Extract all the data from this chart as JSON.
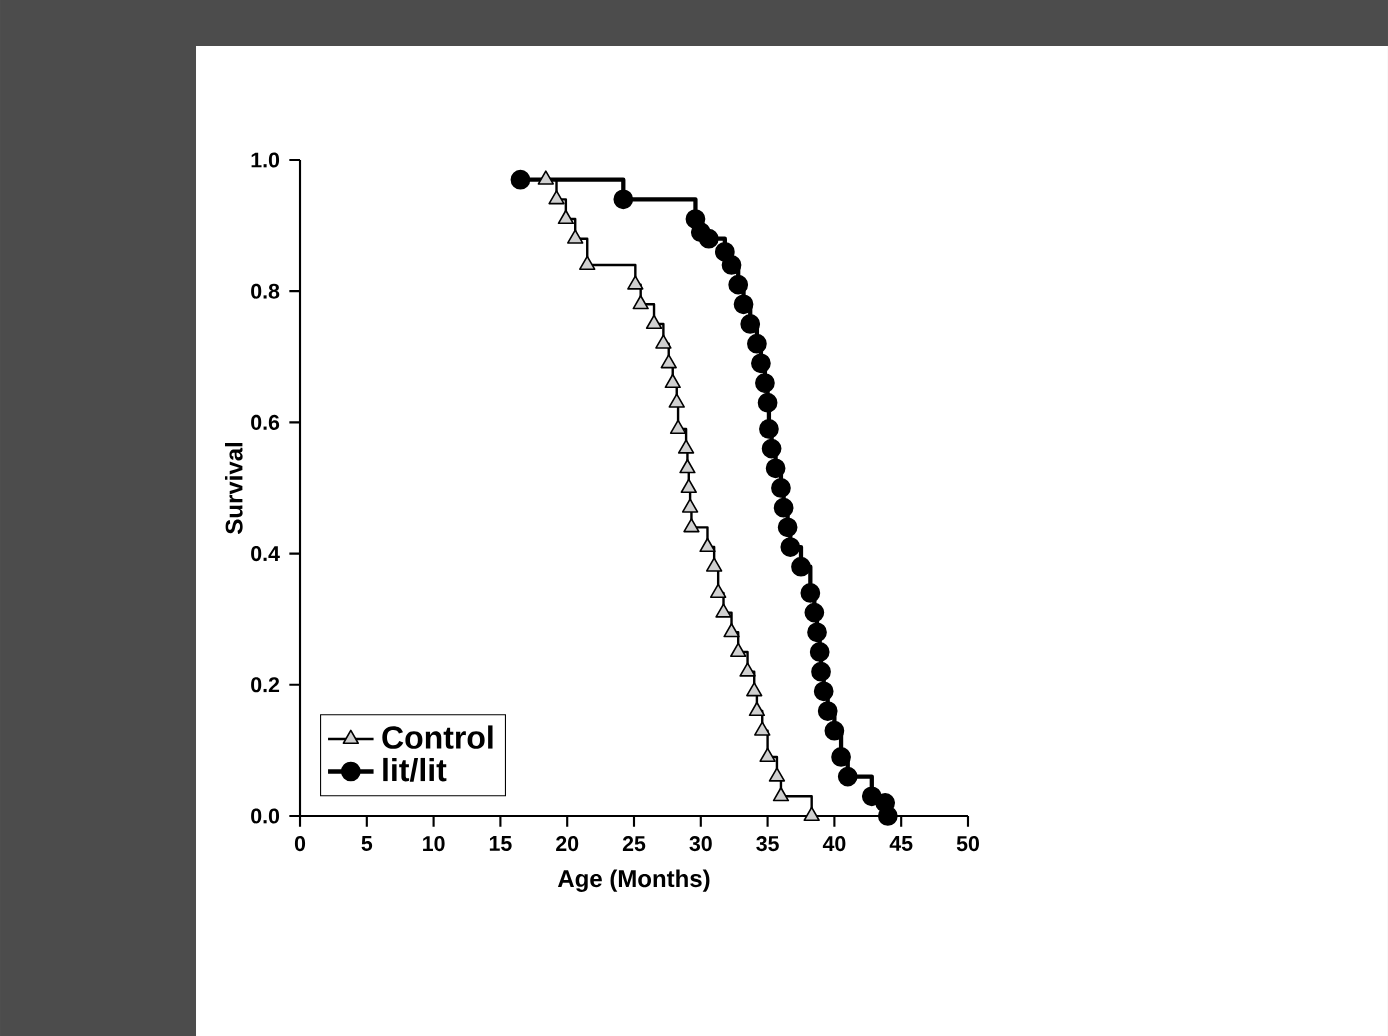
{
  "chart_data": {
    "type": "step",
    "xlabel": "Age (Months)",
    "ylabel": "Survival",
    "xlim": [
      0,
      50
    ],
    "ylim": [
      0,
      1
    ],
    "xticks": [
      0,
      5,
      10,
      15,
      20,
      25,
      30,
      35,
      40,
      45,
      50
    ],
    "yticks": [
      {
        "value": 0,
        "label": "0.0"
      },
      {
        "value": 0.2,
        "label": "0.2"
      },
      {
        "value": 0.4,
        "label": "0.4"
      },
      {
        "value": 0.6,
        "label": "0.6"
      },
      {
        "value": 0.8,
        "label": "0.8"
      },
      {
        "value": 1,
        "label": "1.0"
      }
    ],
    "legend": "bottom left",
    "series": [
      {
        "name": "Control",
        "color": "#d0d0d0",
        "marker": "triangle",
        "x": [
          18.4,
          19.2,
          19.9,
          20.6,
          21.5,
          25.1,
          25.5,
          26.5,
          27.2,
          27.6,
          27.9,
          28.2,
          28.3,
          28.9,
          29.0,
          29.1,
          29.2,
          29.3,
          30.5,
          31.0,
          31.3,
          31.7,
          32.3,
          32.8,
          33.5,
          34.0,
          34.2,
          34.6,
          35.0,
          35.7,
          36.0,
          38.3
        ],
        "values": [
          0.97,
          0.94,
          0.91,
          0.88,
          0.84,
          0.81,
          0.78,
          0.75,
          0.72,
          0.69,
          0.66,
          0.63,
          0.59,
          0.56,
          0.53,
          0.5,
          0.47,
          0.44,
          0.41,
          0.38,
          0.34,
          0.31,
          0.28,
          0.25,
          0.22,
          0.19,
          0.16,
          0.13,
          0.09,
          0.06,
          0.03,
          0.0
        ]
      },
      {
        "name": "lit/lit",
        "color": "#000000",
        "marker": "circle",
        "x": [
          16.5,
          24.2,
          29.6,
          30.0,
          30.6,
          31.8,
          32.3,
          32.8,
          33.2,
          33.7,
          34.2,
          34.5,
          34.8,
          35.0,
          35.1,
          35.3,
          35.6,
          36.0,
          36.2,
          36.5,
          36.7,
          37.5,
          38.2,
          38.5,
          38.7,
          38.9,
          39.0,
          39.2,
          39.5,
          40.0,
          40.5,
          41.0,
          42.8,
          43.8,
          44.0
        ],
        "values": [
          0.97,
          0.94,
          0.91,
          0.89,
          0.88,
          0.86,
          0.84,
          0.81,
          0.78,
          0.75,
          0.72,
          0.69,
          0.66,
          0.63,
          0.59,
          0.56,
          0.53,
          0.5,
          0.47,
          0.44,
          0.41,
          0.38,
          0.34,
          0.31,
          0.28,
          0.25,
          0.22,
          0.19,
          0.16,
          0.13,
          0.09,
          0.06,
          0.03,
          0.02,
          0.0
        ]
      }
    ]
  }
}
